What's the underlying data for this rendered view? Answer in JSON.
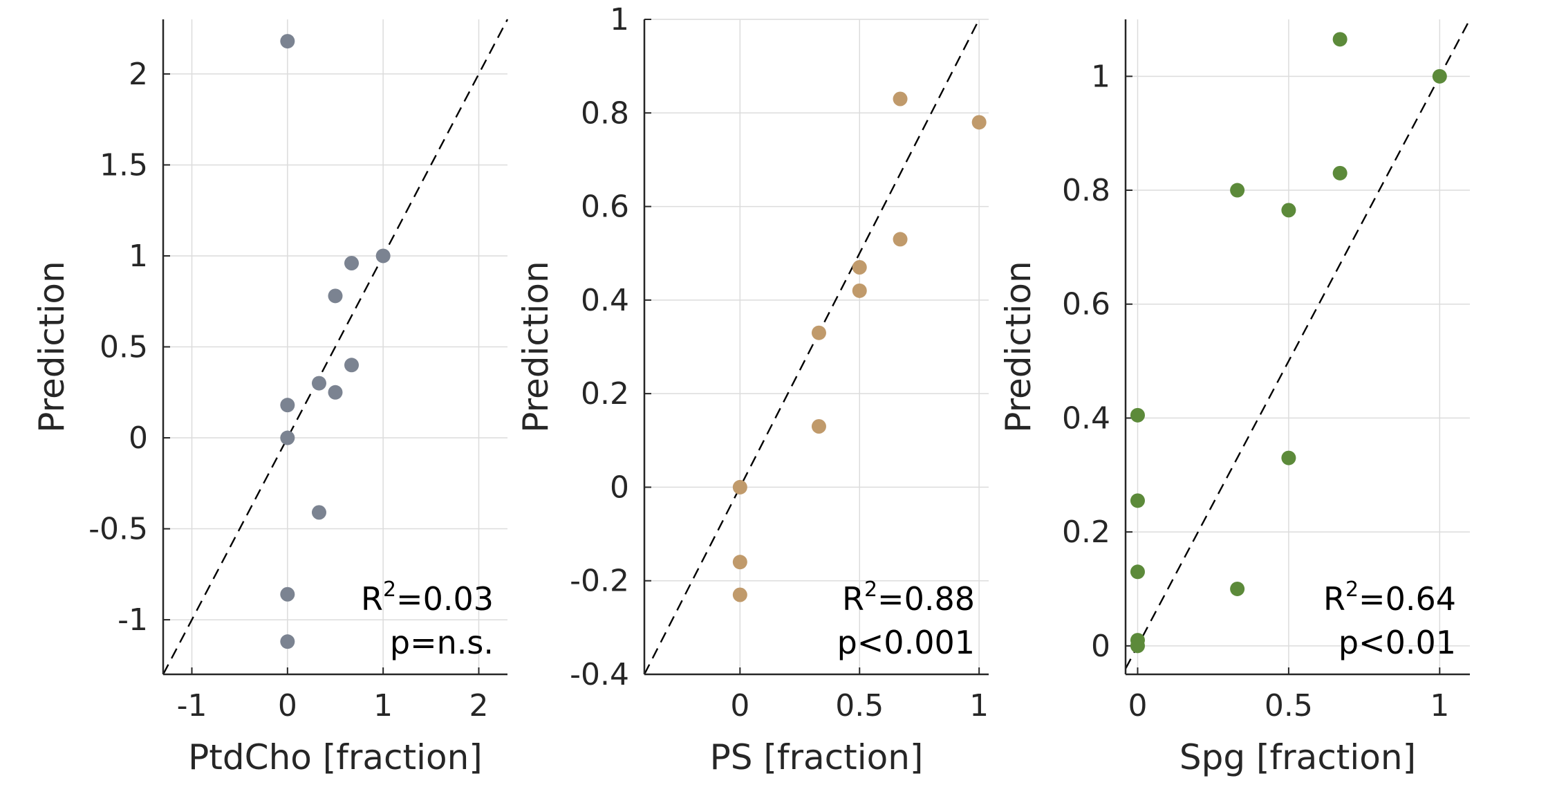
{
  "chart_data": [
    {
      "type": "scatter",
      "xlabel": "PtdCho [fraction]",
      "ylabel": "Prediction",
      "xlim": [
        -1.3,
        2.3
      ],
      "ylim": [
        -1.3,
        2.3
      ],
      "xticks": [
        -1,
        0,
        1,
        2
      ],
      "xtick_labels": [
        "-1",
        "0",
        "1",
        "2"
      ],
      "yticks": [
        -1,
        -0.5,
        0,
        0.5,
        1,
        1.5,
        2
      ],
      "ytick_labels": [
        "-1",
        "-0.5",
        "0",
        "0.5",
        "1",
        "1.5",
        "2"
      ],
      "grid": true,
      "reference_line": "y = x (dashed)",
      "color": "#7b8391",
      "points": [
        {
          "x": 0,
          "y": 2.18
        },
        {
          "x": 0,
          "y": 0.18
        },
        {
          "x": 0,
          "y": 0.0
        },
        {
          "x": 0,
          "y": -0.86
        },
        {
          "x": 0,
          "y": -1.12
        },
        {
          "x": 0.33,
          "y": 0.3
        },
        {
          "x": 0.33,
          "y": -0.41
        },
        {
          "x": 0.5,
          "y": 0.78
        },
        {
          "x": 0.5,
          "y": 0.25
        },
        {
          "x": 0.67,
          "y": 0.96
        },
        {
          "x": 0.67,
          "y": 0.4
        },
        {
          "x": 1.0,
          "y": 1.0
        }
      ],
      "annotation": {
        "r2_prefix": "R",
        "r2_sup": "2",
        "r2_value": "=0.03",
        "p_text": "p=n.s."
      }
    },
    {
      "type": "scatter",
      "xlabel": "PS [fraction]",
      "ylabel": "Prediction",
      "xlim": [
        -0.4,
        1.04
      ],
      "ylim": [
        -0.4,
        1.0
      ],
      "xticks": [
        0,
        0.5,
        1
      ],
      "xtick_labels": [
        "0",
        "0.5",
        "1"
      ],
      "yticks": [
        -0.4,
        -0.2,
        0,
        0.2,
        0.4,
        0.6,
        0.8,
        1
      ],
      "ytick_labels": [
        "-0.4",
        "-0.2",
        "0",
        "0.2",
        "0.4",
        "0.6",
        "0.8",
        "1"
      ],
      "grid": true,
      "reference_line": "y = x (dashed)",
      "color": "#c09a6b",
      "points": [
        {
          "x": 0,
          "y": 0.0
        },
        {
          "x": 0,
          "y": -0.16
        },
        {
          "x": 0,
          "y": -0.23
        },
        {
          "x": 0.33,
          "y": 0.33
        },
        {
          "x": 0.33,
          "y": 0.13
        },
        {
          "x": 0.5,
          "y": 0.47
        },
        {
          "x": 0.5,
          "y": 0.42
        },
        {
          "x": 0.67,
          "y": 0.83
        },
        {
          "x": 0.67,
          "y": 0.53
        },
        {
          "x": 1.0,
          "y": 0.78
        }
      ],
      "annotation": {
        "r2_prefix": "R",
        "r2_sup": "2",
        "r2_value": "=0.88",
        "p_text": "p<0.001"
      }
    },
    {
      "type": "scatter",
      "xlabel": "Spg [fraction]",
      "ylabel": "Prediction",
      "xlim": [
        -0.04,
        1.1
      ],
      "ylim": [
        -0.05,
        1.1
      ],
      "xticks": [
        0,
        0.5,
        1
      ],
      "xtick_labels": [
        "0",
        "0.5",
        "1"
      ],
      "yticks": [
        0,
        0.2,
        0.4,
        0.6,
        0.8,
        1
      ],
      "ytick_labels": [
        "0",
        "0.2",
        "0.4",
        "0.6",
        "0.8",
        "1"
      ],
      "grid": true,
      "reference_line": "y = x (dashed)",
      "color": "#5c8a3a",
      "points": [
        {
          "x": 0,
          "y": 0.405
        },
        {
          "x": 0,
          "y": 0.255
        },
        {
          "x": 0,
          "y": 0.13
        },
        {
          "x": 0,
          "y": 0.01
        },
        {
          "x": 0,
          "y": 0.0
        },
        {
          "x": 0.33,
          "y": 0.8
        },
        {
          "x": 0.33,
          "y": 0.1
        },
        {
          "x": 0.5,
          "y": 0.765
        },
        {
          "x": 0.5,
          "y": 0.33
        },
        {
          "x": 0.67,
          "y": 1.065
        },
        {
          "x": 0.67,
          "y": 0.83
        },
        {
          "x": 1.0,
          "y": 1.0
        }
      ],
      "annotation": {
        "r2_prefix": "R",
        "r2_sup": "2",
        "r2_value": "=0.64",
        "p_text": "p<0.01"
      }
    }
  ]
}
